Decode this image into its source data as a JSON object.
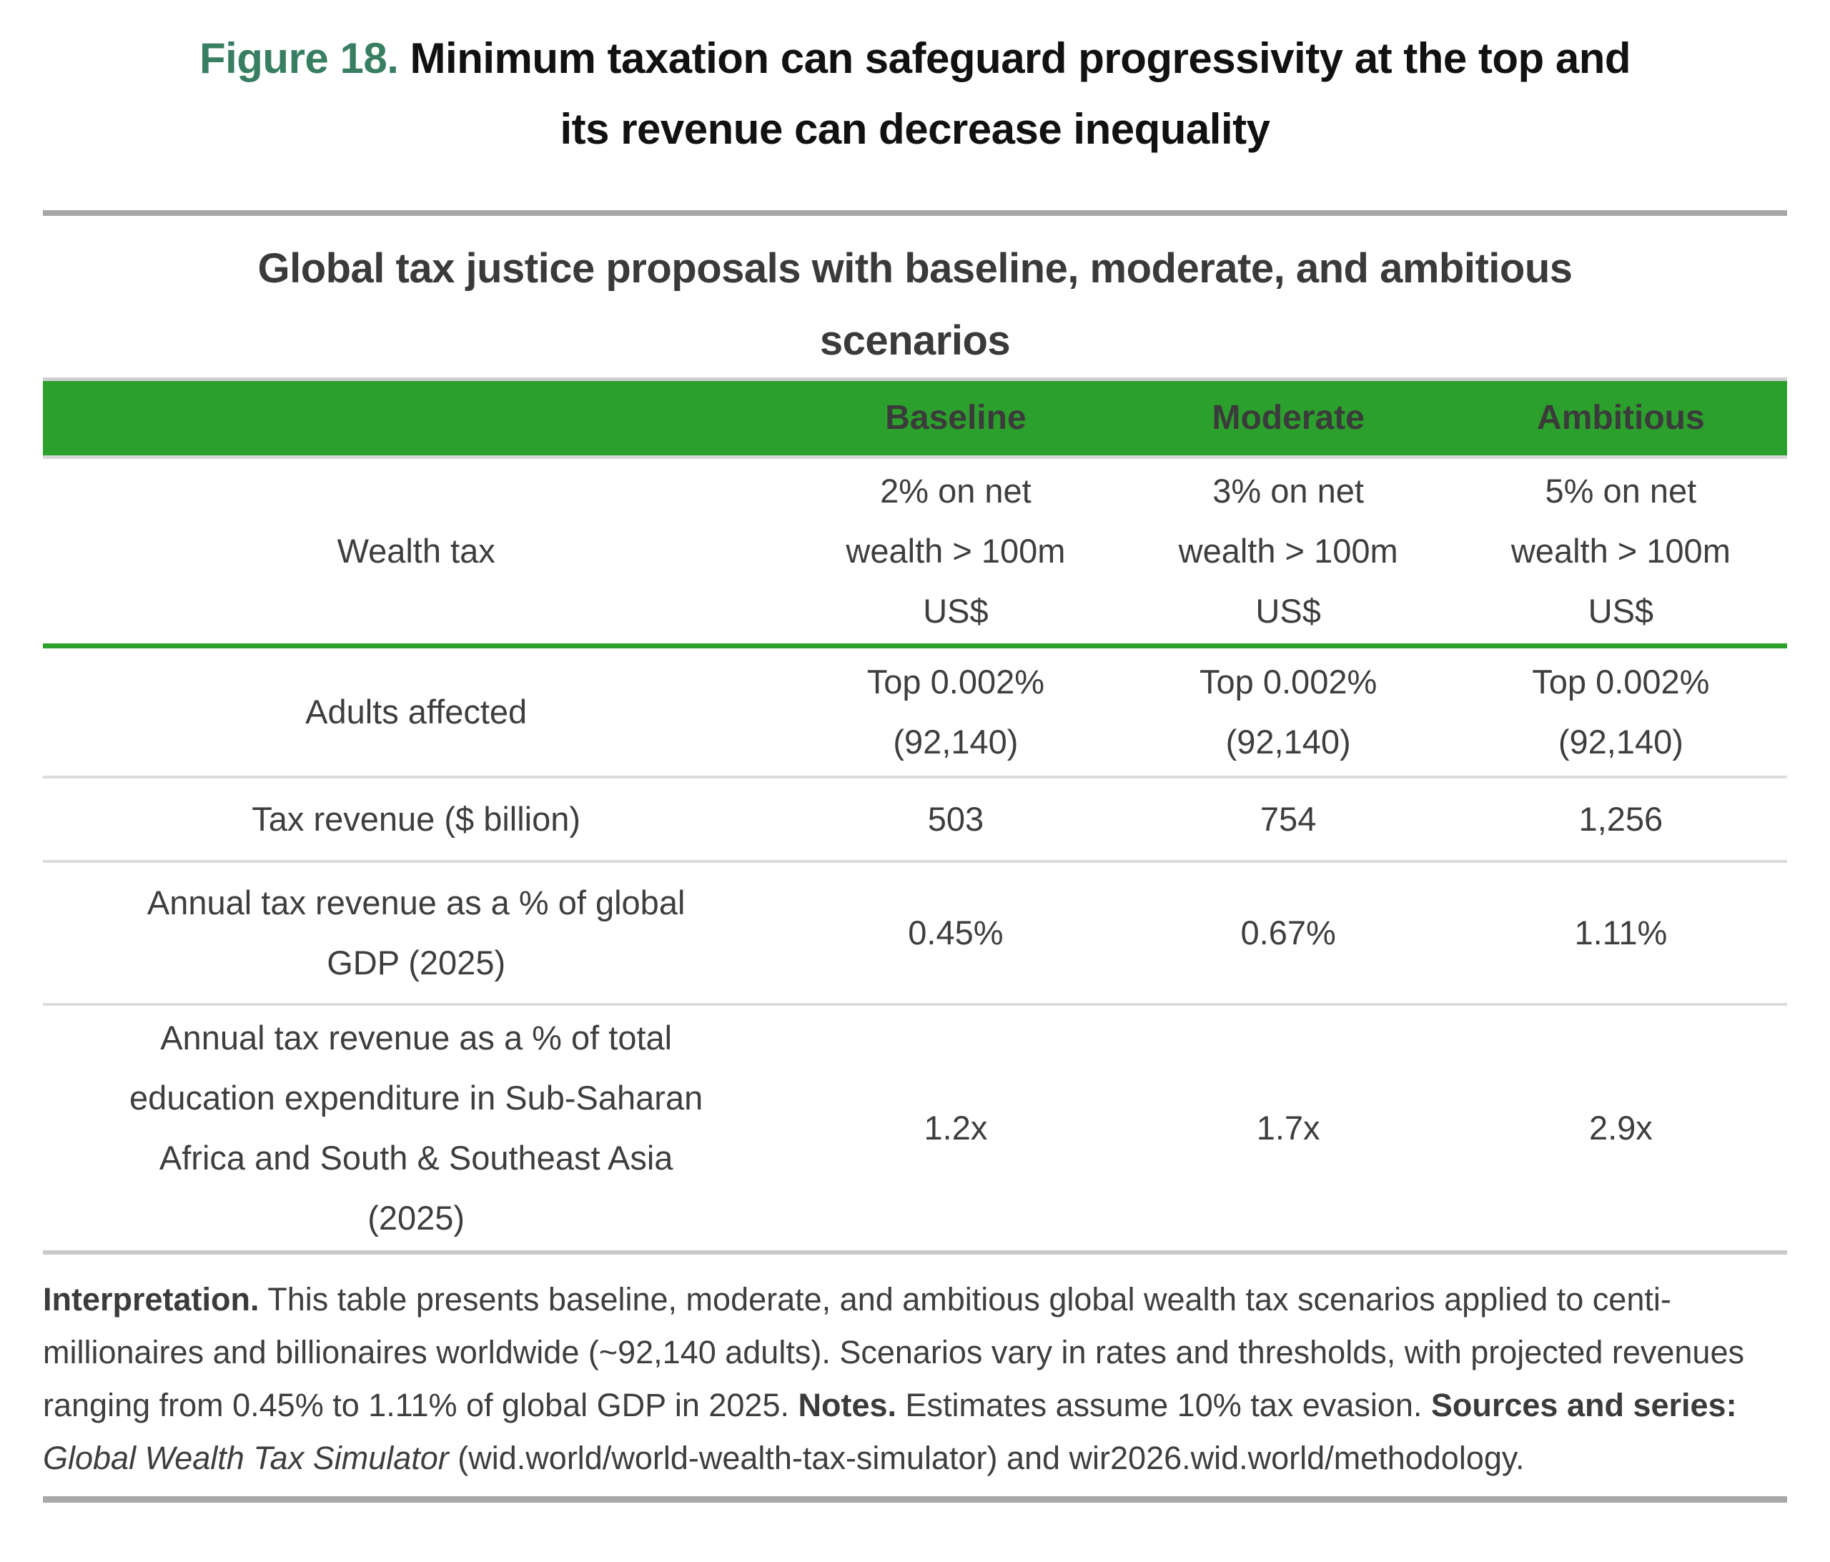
{
  "figure": {
    "label": "Figure 18.",
    "title": " Minimum taxation can safeguard progressivity at the top and\nits revenue can decrease inequality"
  },
  "colors": {
    "figure_label_green": "#377E62",
    "table_header_green": "#2CA02C",
    "rule_gray": "#A6A6A6"
  },
  "table": {
    "title": "Global tax justice proposals with baseline, moderate, and ambitious\nscenarios",
    "columns": [
      "Baseline",
      "Moderate",
      "Ambitious"
    ],
    "rows": [
      {
        "label": "Wealth tax",
        "values": [
          "2% on net\nwealth > 100m\nUS$",
          "3% on net\nwealth > 100m\nUS$",
          "5% on net\nwealth > 100m\nUS$"
        ]
      },
      {
        "label": "Adults affected",
        "values": [
          "Top 0.002%\n(92,140)",
          "Top 0.002%\n(92,140)",
          "Top 0.002%\n(92,140)"
        ]
      },
      {
        "label": "Tax revenue ($ billion)",
        "values": [
          "503",
          "754",
          "1,256"
        ]
      },
      {
        "label": "Annual tax revenue as a % of global\nGDP (2025)",
        "values": [
          "0.45%",
          "0.67%",
          "1.11%"
        ]
      },
      {
        "label": "Annual tax revenue as a % of total\neducation expenditure in Sub-Saharan\nAfrica and South & Southeast Asia\n(2025)",
        "values": [
          "1.2x",
          "1.7x",
          "2.9x"
        ]
      }
    ]
  },
  "notes": {
    "interpretation_label": "Interpretation.",
    "interpretation_text": " This table presents baseline, moderate, and ambitious global wealth tax scenarios applied to centi-millionaires and billionaires worldwide (~92,140 adults). Scenarios vary in rates and thresholds, with projected revenues ranging from 0.45% to 1.11% of global GDP in 2025. ",
    "notes_label": "Notes.",
    "notes_text": " Estimates assume 10% tax evasion. ",
    "sources_label": "Sources and series:",
    "sources_italic": " Global Wealth Tax Simulator",
    "sources_rest": " (wid.world/world-wealth-tax-simulator) and wir2026.wid.world/methodology."
  },
  "chart_data": {
    "type": "table",
    "title": "Global tax justice proposals with baseline, moderate, and ambitious scenarios",
    "columns": [
      "",
      "Baseline",
      "Moderate",
      "Ambitious"
    ],
    "rows": [
      [
        "Wealth tax",
        "2% on net wealth > 100m US$",
        "3% on net wealth > 100m US$",
        "5% on net wealth > 100m US$"
      ],
      [
        "Adults affected",
        "Top 0.002% (92,140)",
        "Top 0.002% (92,140)",
        "Top 0.002% (92,140)"
      ],
      [
        "Tax revenue ($ billion)",
        "503",
        "754",
        "1,256"
      ],
      [
        "Annual tax revenue as a % of global GDP (2025)",
        "0.45%",
        "0.67%",
        "1.11%"
      ],
      [
        "Annual tax revenue as a % of total education expenditure in Sub-Saharan Africa and South & Southeast Asia (2025)",
        "1.2x",
        "1.7x",
        "2.9x"
      ]
    ]
  }
}
